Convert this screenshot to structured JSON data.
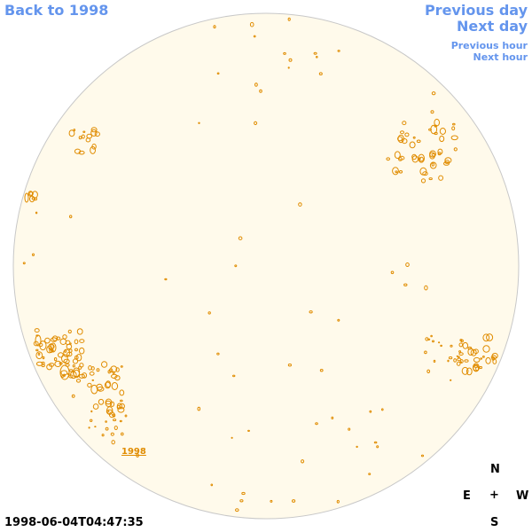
{
  "nav": {
    "back_label": "Back to 1998",
    "previous_day_label": "Previous day",
    "next_day_label": "Next day",
    "previous_hour_label": "Previous hour",
    "next_hour_label": "Next hour"
  },
  "disk": {
    "fill_color": "#fffaeb",
    "limb_color": "#c8c8c8",
    "contour_color": "#e08c00",
    "year_link": "1998"
  },
  "compass": {
    "north": "N",
    "east": "E",
    "center": "+",
    "west": "W",
    "south": "S"
  },
  "timestamp": "1998-06-04T04:47:35"
}
